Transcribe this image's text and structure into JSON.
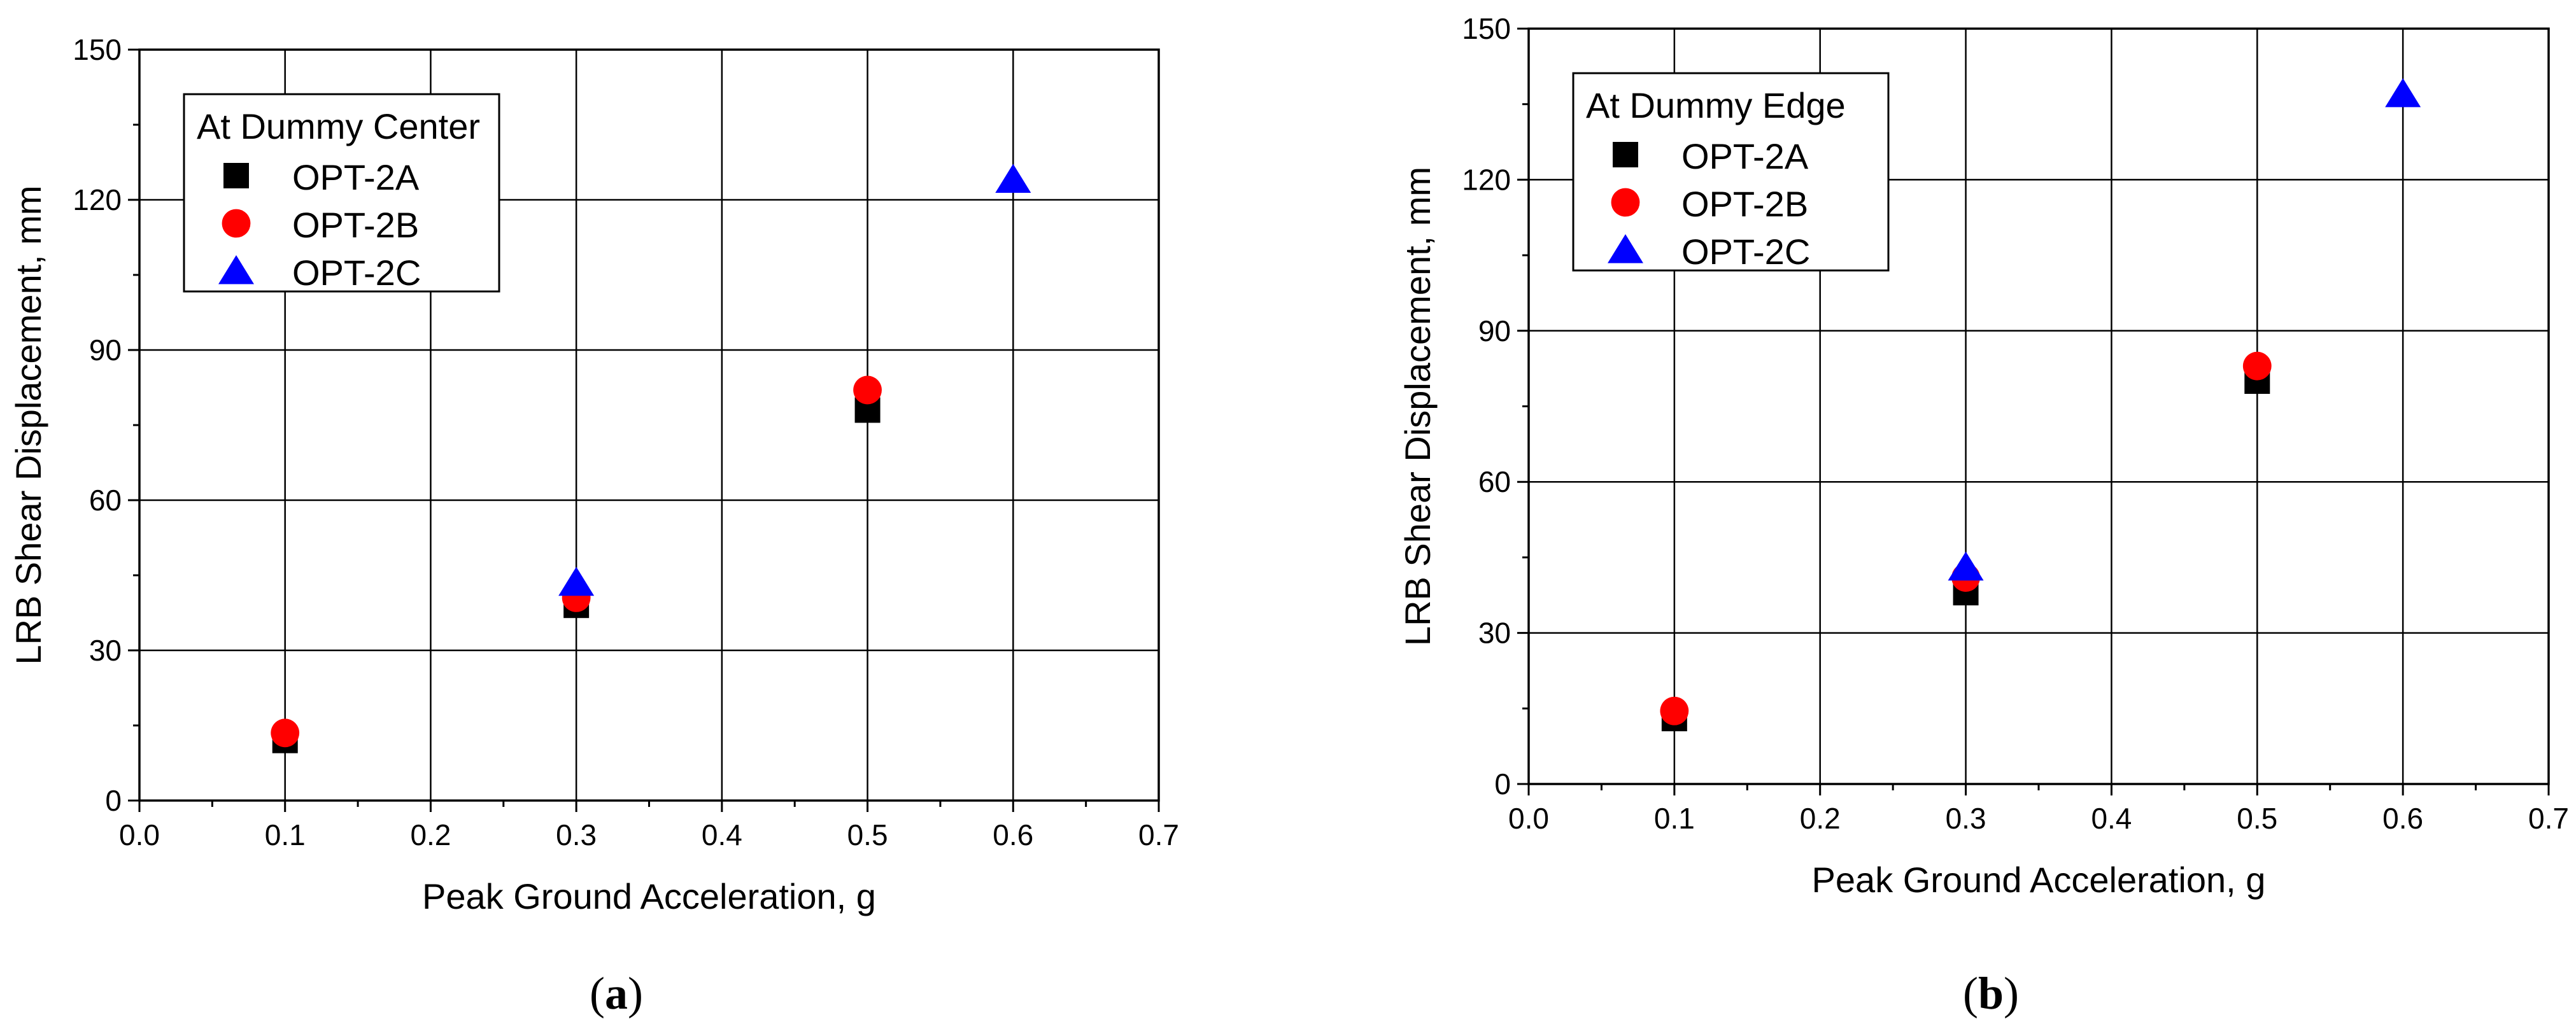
{
  "chart_data": [
    {
      "type": "scatter",
      "panel_caption": "a",
      "xlabel": "Peak Ground Acceleration, g",
      "ylabel": "LRB Shear Displacement, mm",
      "xlim": [
        0.0,
        0.7
      ],
      "ylim": [
        0,
        150
      ],
      "x_ticks": [
        "0.0",
        "0.1",
        "0.2",
        "0.3",
        "0.4",
        "0.5",
        "0.6",
        "0.7"
      ],
      "y_ticks": [
        "0",
        "30",
        "60",
        "90",
        "120",
        "150"
      ],
      "grid": true,
      "legend": {
        "title": "At Dummy Center",
        "position": "top-left",
        "entries": [
          "OPT-2A",
          "OPT-2B",
          "OPT-2C"
        ]
      },
      "series": [
        {
          "name": "OPT-2A",
          "marker": "square",
          "color": "#000000",
          "points": [
            [
              0.1,
              12
            ],
            [
              0.3,
              39
            ],
            [
              0.5,
              78
            ]
          ]
        },
        {
          "name": "OPT-2B",
          "marker": "circle",
          "color": "#ff0000",
          "points": [
            [
              0.1,
              13.5
            ],
            [
              0.3,
              40.5
            ],
            [
              0.5,
              82
            ]
          ]
        },
        {
          "name": "OPT-2C",
          "marker": "triangle",
          "color": "#0000ff",
          "points": [
            [
              0.3,
              43.5
            ],
            [
              0.6,
              124
            ]
          ]
        }
      ]
    },
    {
      "type": "scatter",
      "panel_caption": "b",
      "xlabel": "Peak Ground Acceleration, g",
      "ylabel": "LRB Shear Displacement, mm",
      "xlim": [
        0.0,
        0.7
      ],
      "ylim": [
        0,
        150
      ],
      "x_ticks": [
        "0.0",
        "0.1",
        "0.2",
        "0.3",
        "0.4",
        "0.5",
        "0.6",
        "0.7"
      ],
      "y_ticks": [
        "0",
        "30",
        "60",
        "90",
        "120",
        "150"
      ],
      "grid": true,
      "legend": {
        "title": "At Dummy Edge",
        "position": "top-left",
        "entries": [
          "OPT-2A",
          "OPT-2B",
          "OPT-2C"
        ]
      },
      "series": [
        {
          "name": "OPT-2A",
          "marker": "square",
          "color": "#000000",
          "points": [
            [
              0.1,
              13
            ],
            [
              0.3,
              38
            ],
            [
              0.5,
              80
            ]
          ]
        },
        {
          "name": "OPT-2B",
          "marker": "circle",
          "color": "#ff0000",
          "points": [
            [
              0.1,
              14.5
            ],
            [
              0.3,
              41
            ],
            [
              0.5,
              83
            ]
          ]
        },
        {
          "name": "OPT-2C",
          "marker": "triangle",
          "color": "#0000ff",
          "points": [
            [
              0.3,
              43
            ],
            [
              0.6,
              137
            ]
          ]
        }
      ]
    }
  ]
}
